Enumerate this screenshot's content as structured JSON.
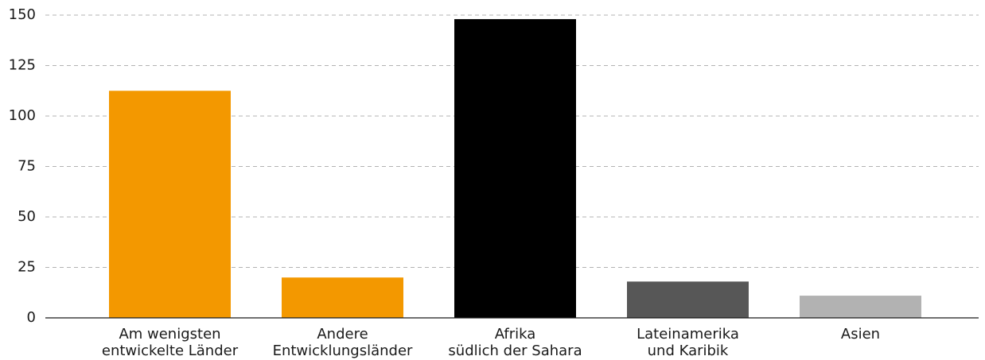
{
  "chart_data": {
    "type": "bar",
    "categories": [
      [
        "Am wenigsten",
        "entwickelte Länder"
      ],
      [
        "Andere",
        "Entwicklungsländer"
      ],
      [
        "Afrika",
        "südlich der Sahara"
      ],
      [
        "Lateinamerika",
        "und Karibik"
      ],
      [
        "Asien"
      ]
    ],
    "values": [
      112.5,
      20,
      148,
      18,
      11
    ],
    "colors": [
      "#f39800",
      "#f39800",
      "#000000",
      "#575757",
      "#b2b2b2"
    ],
    "ylim": [
      0,
      150
    ],
    "yticks": [
      0,
      25,
      50,
      75,
      100,
      125,
      150
    ],
    "grid": true
  }
}
